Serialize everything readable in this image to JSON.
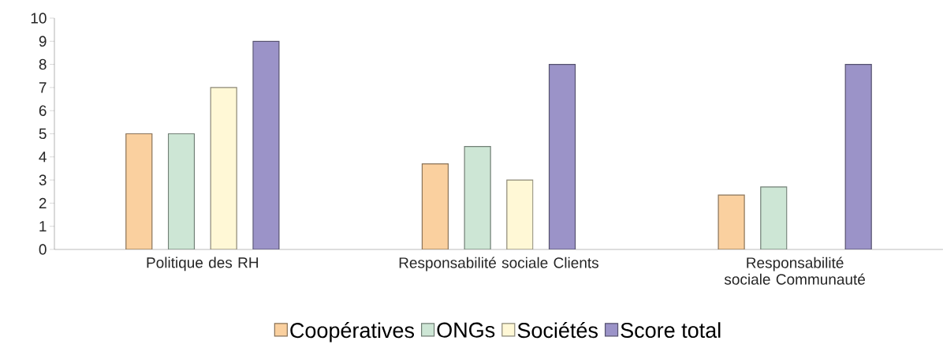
{
  "chart_data": {
    "type": "bar",
    "categories": [
      "Politique des RH",
      "Responsabilité sociale Clients",
      "Responsabilité sociale Communauté"
    ],
    "series": [
      {
        "name": "Coopératives",
        "color": "#fad09f",
        "values": [
          5,
          3.7,
          2.35
        ]
      },
      {
        "name": "ONGs",
        "color": "#cde6d5",
        "values": [
          5,
          4.45,
          2.7
        ]
      },
      {
        "name": "Sociétés",
        "color": "#fff8d6",
        "values": [
          7,
          3,
          null
        ]
      },
      {
        "name": "Score total",
        "color": "#9b93c8",
        "values": [
          9,
          8,
          8
        ]
      }
    ],
    "ylim": [
      0,
      10
    ],
    "yticks": [
      0,
      1,
      2,
      3,
      4,
      5,
      6,
      7,
      8,
      9,
      10
    ],
    "legend": "bottom"
  }
}
